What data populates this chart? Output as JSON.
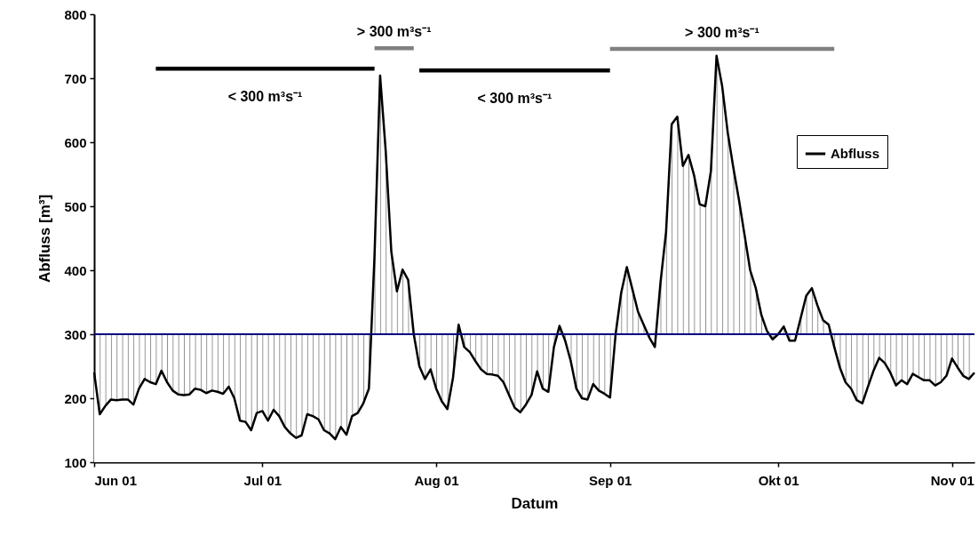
{
  "chart_data": {
    "type": "line",
    "xlabel": "Datum",
    "ylabel": "Abfluss [m³]",
    "xlim": [
      "--06-01",
      "--11-05"
    ],
    "ylim": [
      100,
      800
    ],
    "xticks": [
      {
        "value": "--06-01",
        "label": "Jun 01"
      },
      {
        "value": "--07-01",
        "label": "Jul 01"
      },
      {
        "value": "--08-01",
        "label": "Aug 01"
      },
      {
        "value": "--09-01",
        "label": "Sep 01"
      },
      {
        "value": "--10-01",
        "label": "Okt 01"
      },
      {
        "value": "--11-01",
        "label": "Nov 01"
      }
    ],
    "yticks": [
      100,
      200,
      300,
      400,
      500,
      600,
      700,
      800
    ],
    "grid": false,
    "legend": "right",
    "marker": "none",
    "line_style": "solid",
    "ref_lines": [
      {
        "axis": "y",
        "value": 300,
        "label": null,
        "color": "#000080"
      }
    ],
    "x": [
      "--06-01",
      "--06-02",
      "--06-03",
      "--06-04",
      "--06-05",
      "--06-06",
      "--06-07",
      "--06-08",
      "--06-09",
      "--06-10",
      "--06-11",
      "--06-12",
      "--06-13",
      "--06-14",
      "--06-15",
      "--06-16",
      "--06-17",
      "--06-18",
      "--06-19",
      "--06-20",
      "--06-21",
      "--06-22",
      "--06-23",
      "--06-24",
      "--06-25",
      "--06-26",
      "--06-27",
      "--06-28",
      "--06-29",
      "--06-30",
      "--07-01",
      "--07-02",
      "--07-03",
      "--07-04",
      "--07-05",
      "--07-06",
      "--07-07",
      "--07-08",
      "--07-09",
      "--07-10",
      "--07-11",
      "--07-12",
      "--07-13",
      "--07-14",
      "--07-15",
      "--07-16",
      "--07-17",
      "--07-18",
      "--07-19",
      "--07-20",
      "--07-21",
      "--07-22",
      "--07-23",
      "--07-24",
      "--07-25",
      "--07-26",
      "--07-27",
      "--07-28",
      "--07-29",
      "--07-30",
      "--07-31",
      "--08-01",
      "--08-02",
      "--08-03",
      "--08-04",
      "--08-05",
      "--08-06",
      "--08-07",
      "--08-08",
      "--08-09",
      "--08-10",
      "--08-11",
      "--08-12",
      "--08-13",
      "--08-14",
      "--08-15",
      "--08-16",
      "--08-17",
      "--08-18",
      "--08-19",
      "--08-20",
      "--08-21",
      "--08-22",
      "--08-23",
      "--08-24",
      "--08-25",
      "--08-26",
      "--08-27",
      "--08-28",
      "--08-29",
      "--08-30",
      "--08-31",
      "--09-01",
      "--09-02",
      "--09-03",
      "--09-04",
      "--09-05",
      "--09-06",
      "--09-07",
      "--09-08",
      "--09-09",
      "--09-10",
      "--09-11",
      "--09-12",
      "--09-13",
      "--09-14",
      "--09-15",
      "--09-16",
      "--09-17",
      "--09-18",
      "--09-19",
      "--09-20",
      "--09-21",
      "--09-22",
      "--09-23",
      "--09-24",
      "--09-25",
      "--09-26",
      "--09-27",
      "--09-28",
      "--09-29",
      "--09-30",
      "--10-01",
      "--10-02",
      "--10-03",
      "--10-04",
      "--10-05",
      "--10-06",
      "--10-07",
      "--10-08",
      "--10-09",
      "--10-10",
      "--10-11",
      "--10-12",
      "--10-13",
      "--10-14",
      "--10-15",
      "--10-16",
      "--10-17",
      "--10-18",
      "--10-19",
      "--10-20",
      "--10-21",
      "--10-22",
      "--10-23",
      "--10-24",
      "--10-25",
      "--10-26",
      "--10-27",
      "--10-28",
      "--10-29",
      "--10-30",
      "--10-31",
      "--11-01",
      "--11-02",
      "--11-03",
      "--11-04",
      "--11-05"
    ],
    "series": [
      {
        "name": "Abfluss",
        "type": "area",
        "color": "#000000",
        "values": [
          240,
          175,
          188,
          198,
          197,
          198,
          198,
          190,
          215,
          230,
          225,
          222,
          243,
          225,
          212,
          206,
          205,
          206,
          215,
          213,
          208,
          212,
          210,
          207,
          218,
          200,
          165,
          163,
          150,
          177,
          180,
          165,
          182,
          172,
          155,
          145,
          138,
          142,
          175,
          172,
          167,
          150,
          145,
          136,
          155,
          143,
          172,
          177,
          192,
          215,
          422,
          704,
          586,
          429,
          367,
          401,
          385,
          300,
          250,
          230,
          245,
          215,
          195,
          183,
          232,
          315,
          280,
          272,
          258,
          245,
          238,
          237,
          235,
          225,
          205,
          185,
          178,
          190,
          205,
          242,
          215,
          210,
          280,
          313,
          290,
          258,
          215,
          200,
          198,
          222,
          212,
          207,
          201,
          300,
          365,
          405,
          370,
          335,
          315,
          295,
          280,
          380,
          460,
          628,
          640,
          563,
          580,
          548,
          503,
          500,
          555,
          735,
          688,
          615,
          560,
          510,
          455,
          400,
          372,
          330,
          305,
          292,
          300,
          312,
          290,
          290,
          325,
          360,
          372,
          345,
          322,
          315,
          280,
          248,
          225,
          215,
          197,
          192,
          218,
          243,
          263,
          255,
          240,
          220,
          228,
          222,
          238,
          233,
          228,
          228,
          220,
          225,
          235,
          262,
          248,
          235,
          230,
          240
        ]
      },
      {
        "name": "< 300 m³s⁻¹",
        "color": "#000000",
        "x": [
          "--06-12",
          "--07-21"
        ],
        "values": [
          715,
          715
        ]
      },
      {
        "name": "> 300 m³s⁻¹",
        "color": "#808080",
        "x": [
          "--07-21",
          "--07-28"
        ],
        "values": [
          747,
          747
        ]
      },
      {
        "name": "< 300 m³s⁻¹",
        "color": "#000000",
        "x": [
          "--07-29",
          "--09-01"
        ],
        "values": [
          712,
          712
        ]
      },
      {
        "name": "> 300 m³s⁻¹",
        "color": "#808080",
        "x": [
          "--09-01",
          "--10-11"
        ],
        "values": [
          746,
          746
        ]
      }
    ]
  }
}
